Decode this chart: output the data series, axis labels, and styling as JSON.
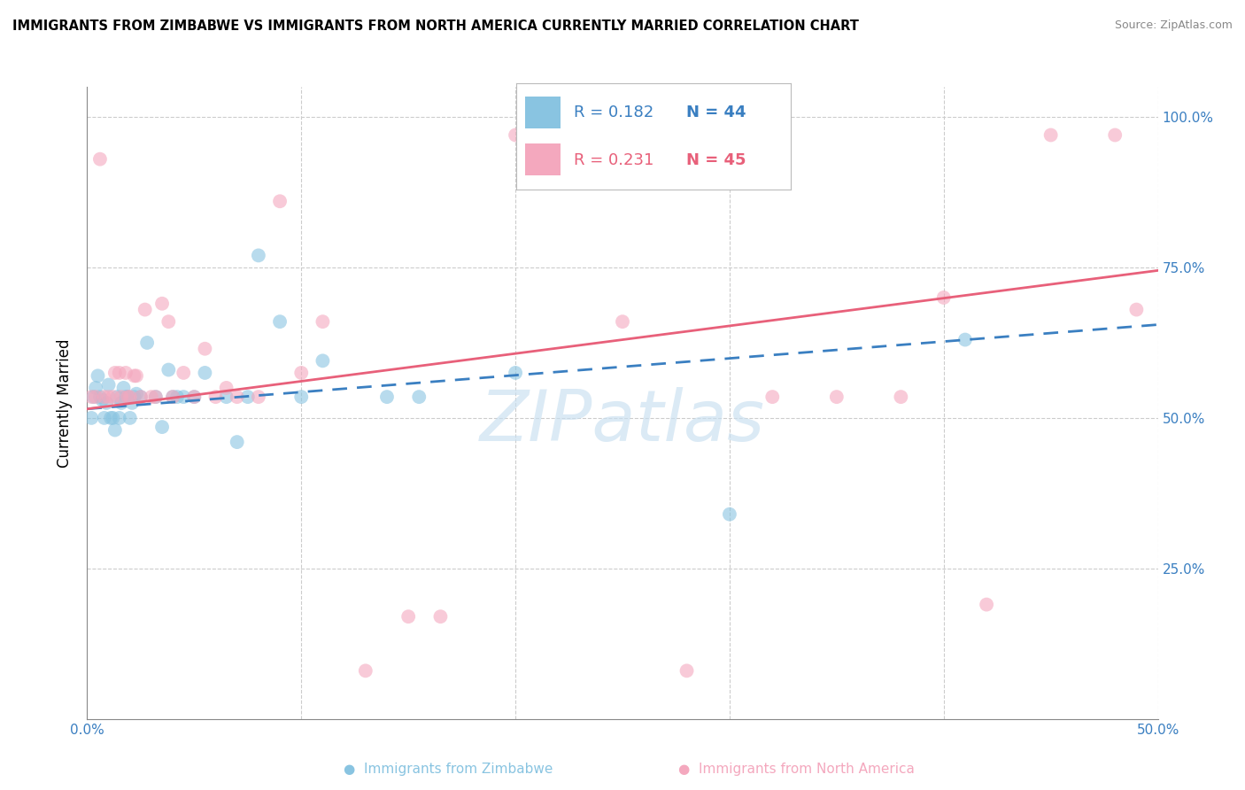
{
  "title": "IMMIGRANTS FROM ZIMBABWE VS IMMIGRANTS FROM NORTH AMERICA CURRENTLY MARRIED CORRELATION CHART",
  "source": "Source: ZipAtlas.com",
  "ylabel": "Currently Married",
  "xlim": [
    0.0,
    0.5
  ],
  "ylim": [
    0.0,
    1.05
  ],
  "color_blue": "#89c4e1",
  "color_pink": "#f4a8be",
  "color_blue_line": "#3a7fc1",
  "color_pink_line": "#e8607a",
  "color_text_blue": "#3a7fc1",
  "color_text_pink": "#e8607a",
  "legend_r1": "R = 0.182",
  "legend_n1": "N = 44",
  "legend_r2": "R = 0.231",
  "legend_n2": "N = 45",
  "legend1_label": "Immigrants from Zimbabwe",
  "legend2_label": "Immigrants from North America",
  "blue_x": [
    0.002,
    0.003,
    0.004,
    0.005,
    0.006,
    0.007,
    0.008,
    0.009,
    0.01,
    0.011,
    0.012,
    0.013,
    0.014,
    0.015,
    0.016,
    0.017,
    0.018,
    0.019,
    0.02,
    0.021,
    0.022,
    0.023,
    0.025,
    0.028,
    0.032,
    0.035,
    0.038,
    0.04,
    0.042,
    0.045,
    0.05,
    0.055,
    0.065,
    0.07,
    0.075,
    0.08,
    0.09,
    0.1,
    0.11,
    0.14,
    0.155,
    0.2,
    0.3,
    0.41
  ],
  "blue_y": [
    0.5,
    0.535,
    0.55,
    0.57,
    0.535,
    0.53,
    0.5,
    0.525,
    0.555,
    0.5,
    0.5,
    0.48,
    0.535,
    0.5,
    0.525,
    0.55,
    0.535,
    0.535,
    0.5,
    0.525,
    0.535,
    0.54,
    0.535,
    0.625,
    0.535,
    0.485,
    0.58,
    0.535,
    0.535,
    0.535,
    0.535,
    0.575,
    0.535,
    0.46,
    0.535,
    0.77,
    0.66,
    0.535,
    0.595,
    0.535,
    0.535,
    0.575,
    0.34,
    0.63
  ],
  "pink_x": [
    0.002,
    0.004,
    0.006,
    0.008,
    0.01,
    0.012,
    0.013,
    0.015,
    0.016,
    0.018,
    0.019,
    0.02,
    0.022,
    0.023,
    0.025,
    0.027,
    0.03,
    0.032,
    0.035,
    0.038,
    0.04,
    0.045,
    0.05,
    0.055,
    0.06,
    0.065,
    0.07,
    0.08,
    0.09,
    0.1,
    0.11,
    0.13,
    0.15,
    0.165,
    0.2,
    0.25,
    0.28,
    0.32,
    0.35,
    0.38,
    0.4,
    0.42,
    0.45,
    0.48,
    0.49
  ],
  "pink_y": [
    0.535,
    0.535,
    0.93,
    0.535,
    0.535,
    0.535,
    0.575,
    0.575,
    0.535,
    0.575,
    0.535,
    0.535,
    0.57,
    0.57,
    0.535,
    0.68,
    0.535,
    0.535,
    0.69,
    0.66,
    0.535,
    0.575,
    0.535,
    0.615,
    0.535,
    0.55,
    0.535,
    0.535,
    0.86,
    0.575,
    0.66,
    0.08,
    0.17,
    0.17,
    0.97,
    0.66,
    0.08,
    0.535,
    0.535,
    0.535,
    0.7,
    0.19,
    0.97,
    0.97,
    0.68
  ],
  "blue_line_x": [
    0.0,
    0.5
  ],
  "blue_line_y": [
    0.515,
    0.655
  ],
  "pink_line_x": [
    0.0,
    0.5
  ],
  "pink_line_y": [
    0.515,
    0.745
  ],
  "watermark": "ZIPatlas",
  "grid_color": "#cccccc",
  "background_color": "#ffffff"
}
